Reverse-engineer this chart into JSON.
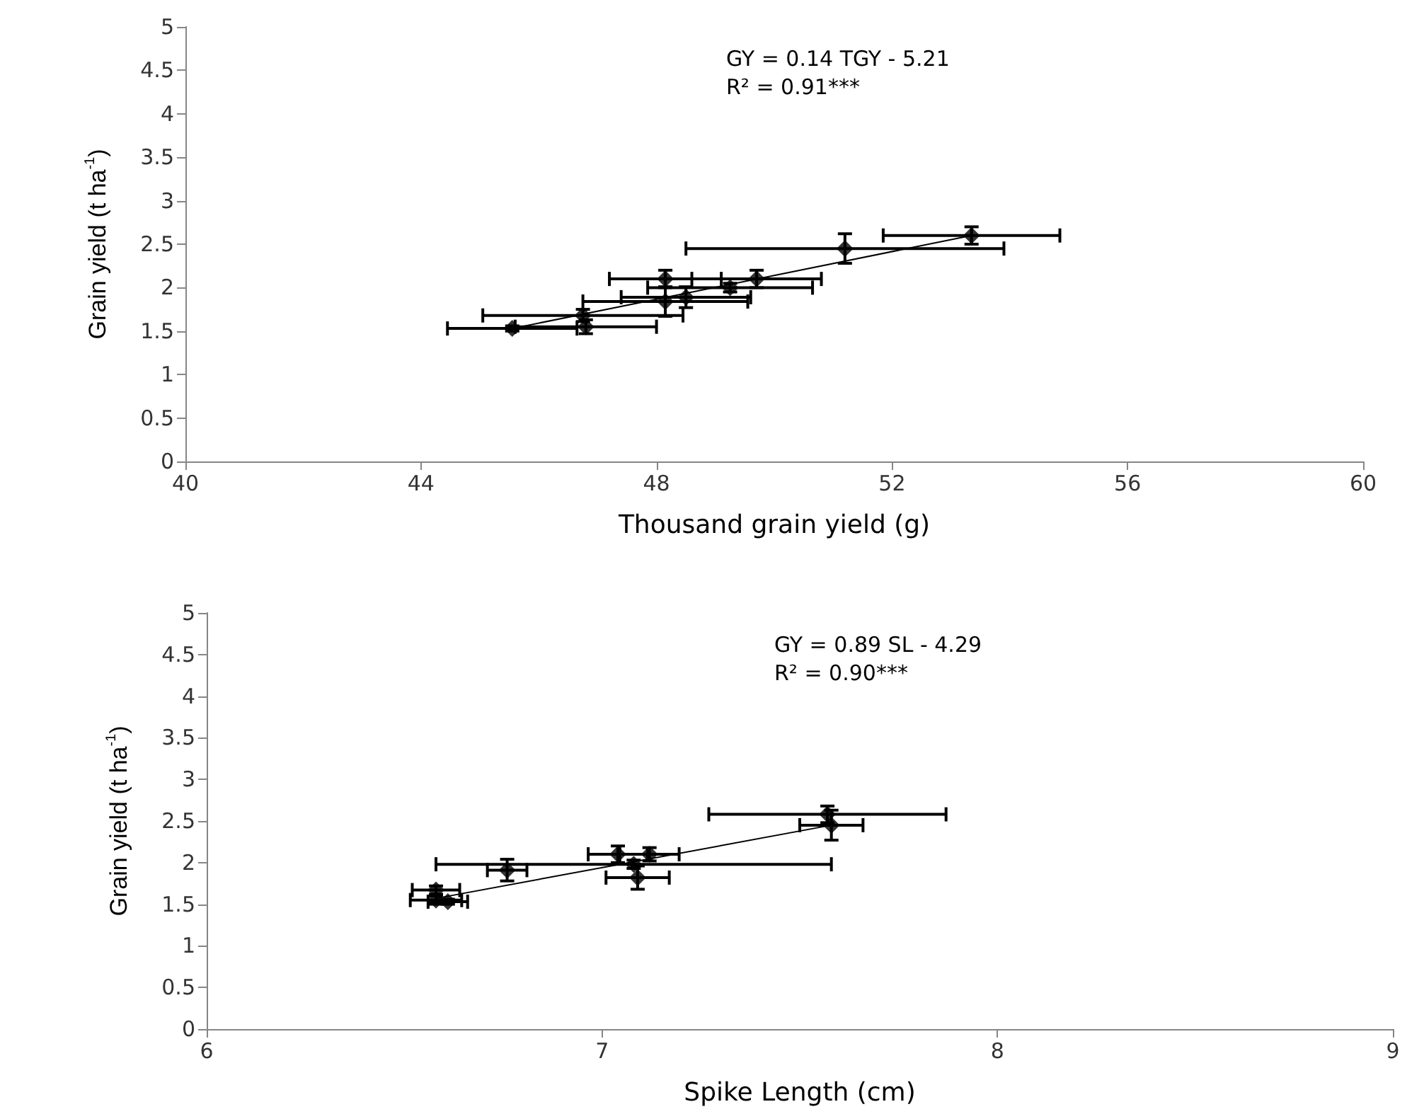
{
  "chart_data": [
    {
      "type": "scatter",
      "xlabel": "Thousand grain yield (g)",
      "ylabel": "Grain yield (t ha$^{-1}$)",
      "annotations": [
        "GY = 0.14 TGY - 5.21",
        "R² = 0.91***"
      ],
      "xlim": [
        40,
        60
      ],
      "xticks": [
        40,
        44,
        48,
        52,
        56,
        60
      ],
      "ylim": [
        0,
        5
      ],
      "yticks": [
        0,
        0.5,
        1,
        1.5,
        2,
        2.5,
        3,
        3.5,
        4,
        4.5,
        5
      ],
      "grid": false,
      "marker": "diamond",
      "series": [
        {
          "color": "#000000",
          "x": [
            45.55,
            46.8,
            46.75,
            48.15,
            48.5,
            48.15,
            49.25,
            49.7,
            51.2,
            53.35
          ],
          "values": [
            1.53,
            1.55,
            1.68,
            1.84,
            1.89,
            2.1,
            2.0,
            2.1,
            2.45,
            2.6
          ],
          "xerrors": [
            1.1,
            1.2,
            1.7,
            1.4,
            1.1,
            0.95,
            1.4,
            1.1,
            2.7,
            1.5
          ],
          "errors": [
            0.03,
            0.08,
            0.07,
            0.17,
            0.12,
            0.1,
            0.05,
            0.1,
            0.17,
            0.1
          ]
        },
        {
          "type": "line",
          "color": "#000000",
          "x": [
            45.55,
            53.35
          ],
          "values": [
            1.53,
            2.6
          ],
          "marker": "none"
        }
      ]
    },
    {
      "type": "scatter",
      "xlabel": "Spike Length (cm)",
      "ylabel": "Grain yield (t ha$^{-1}$)",
      "annotations": [
        "GY = 0.89 SL - 4.29",
        "R² = 0.90***"
      ],
      "xlim": [
        6,
        9
      ],
      "xticks": [
        6,
        7,
        8,
        9
      ],
      "ylim": [
        0,
        5
      ],
      "yticks": [
        0,
        0.5,
        1,
        1.5,
        2,
        2.5,
        3,
        3.5,
        4,
        4.5,
        5
      ],
      "grid": false,
      "marker": "diamond",
      "series": [
        {
          "color": "#000000",
          "x": [
            6.58,
            6.58,
            6.61,
            6.76,
            7.04,
            7.12,
            7.08,
            7.09,
            7.57,
            7.58
          ],
          "values": [
            1.67,
            1.55,
            1.53,
            1.91,
            2.1,
            2.1,
            1.98,
            1.82,
            2.58,
            2.45
          ],
          "xerrors": [
            0.06,
            0.065,
            0.05,
            0.05,
            0.075,
            0.075,
            0.5,
            0.08,
            0.3,
            0.08
          ],
          "errors": [
            0.05,
            0.05,
            0.03,
            0.13,
            0.1,
            0.08,
            0.05,
            0.14,
            0.1,
            0.18
          ]
        },
        {
          "type": "line",
          "color": "#000000",
          "x": [
            6.58,
            7.58
          ],
          "values": [
            1.57,
            2.45
          ],
          "marker": "none"
        }
      ]
    }
  ]
}
